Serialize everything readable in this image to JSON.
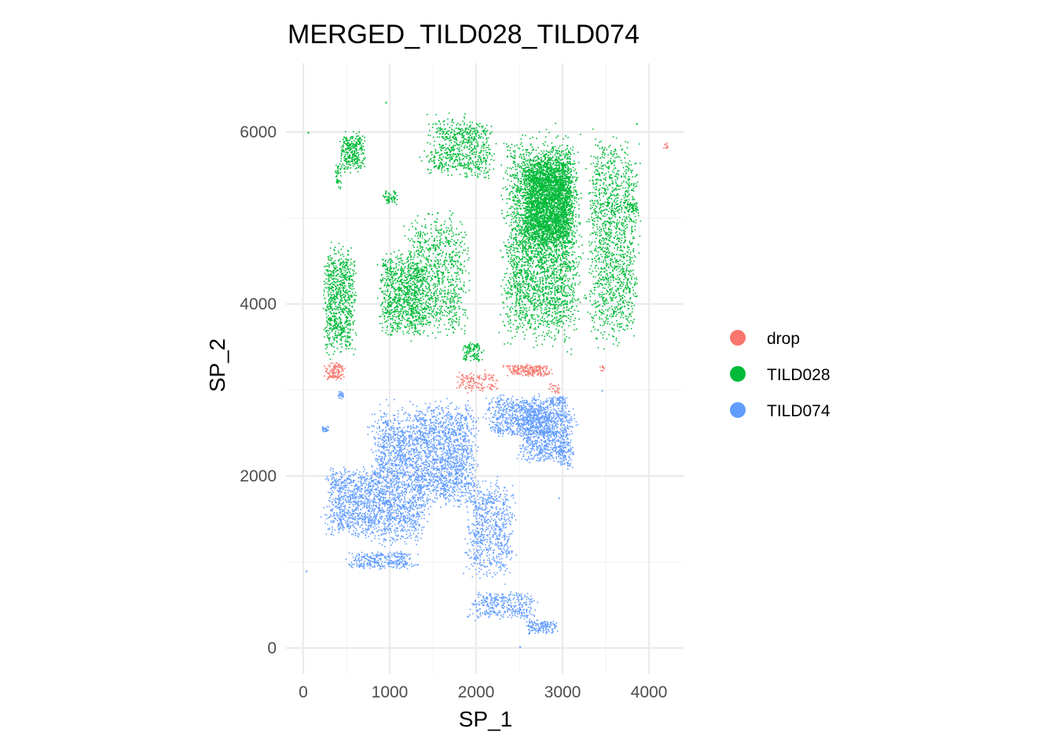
{
  "chart_data": {
    "type": "scatter",
    "title": "MERGED_TILD028_TILD074",
    "xlabel": "SP_1",
    "ylabel": "SP_2",
    "xlim": [
      -200,
      4400
    ],
    "ylim": [
      -300,
      6800
    ],
    "x_ticks": [
      0,
      1000,
      2000,
      3000,
      4000
    ],
    "y_ticks": [
      0,
      2000,
      4000,
      6000
    ],
    "grid": true,
    "legend_position": "right",
    "series": [
      {
        "name": "drop",
        "color": "#F8766D",
        "regions": [
          {
            "x": [
              200,
              500
            ],
            "y": [
              3100,
              3350
            ],
            "n": 120
          },
          {
            "x": [
              1700,
              2300
            ],
            "y": [
              2950,
              3250
            ],
            "n": 140
          },
          {
            "x": [
              2250,
              2950
            ],
            "y": [
              3150,
              3320
            ],
            "n": 220
          },
          {
            "x": [
              2800,
              3000
            ],
            "y": [
              2950,
              3100
            ],
            "n": 25
          },
          {
            "x": [
              3400,
              3500
            ],
            "y": [
              3200,
              3300
            ],
            "n": 10
          },
          {
            "x": [
              4150,
              4230
            ],
            "y": [
              5800,
              5900
            ],
            "n": 10
          }
        ],
        "points": [
          {
            "x": 4200,
            "y": 5850
          }
        ]
      },
      {
        "name": "TILD028",
        "color": "#00BA38",
        "regions": [
          {
            "x": [
              380,
              750
            ],
            "y": [
              5500,
              6050
            ],
            "n": 300
          },
          {
            "x": [
              350,
              450
            ],
            "y": [
              5300,
              5700
            ],
            "n": 40
          },
          {
            "x": [
              180,
              650
            ],
            "y": [
              3300,
              4800
            ],
            "n": 800
          },
          {
            "x": [
              800,
              1500
            ],
            "y": [
              3500,
              4700
            ],
            "n": 900
          },
          {
            "x": [
              1100,
              2000
            ],
            "y": [
              3500,
              5200
            ],
            "n": 900
          },
          {
            "x": [
              1300,
              2300
            ],
            "y": [
              5400,
              6250
            ],
            "n": 700
          },
          {
            "x": [
              2200,
              3300
            ],
            "y": [
              3300,
              6200
            ],
            "n": 3200
          },
          {
            "x": [
              2450,
              3200
            ],
            "y": [
              4500,
              5900
            ],
            "n": 2600
          },
          {
            "x": [
              3200,
              3950
            ],
            "y": [
              3300,
              6200
            ],
            "n": 1400
          },
          {
            "x": [
              900,
              1100
            ],
            "y": [
              5150,
              5350
            ],
            "n": 60
          },
          {
            "x": [
              1800,
              2100
            ],
            "y": [
              3300,
              3600
            ],
            "n": 120
          },
          {
            "x": [
              3700,
              3900
            ],
            "y": [
              5050,
              5200
            ],
            "n": 50
          }
        ],
        "points": [
          {
            "x": 950,
            "y": 6350
          },
          {
            "x": 50,
            "y": 6000
          },
          {
            "x": 3850,
            "y": 6100
          }
        ]
      },
      {
        "name": "TILD074",
        "color": "#619CFF",
        "regions": [
          {
            "x": [
              150,
              1000
            ],
            "y": [
              1200,
              2200
            ],
            "n": 900
          },
          {
            "x": [
              700,
              1500
            ],
            "y": [
              1000,
              3000
            ],
            "n": 1600
          },
          {
            "x": [
              1200,
              2100
            ],
            "y": [
              1500,
              3000
            ],
            "n": 1400
          },
          {
            "x": [
              1800,
              2500
            ],
            "y": [
              700,
              2100
            ],
            "n": 700
          },
          {
            "x": [
              2400,
              3200
            ],
            "y": [
              2100,
              2900
            ],
            "n": 900
          },
          {
            "x": [
              2000,
              3000
            ],
            "y": [
              2400,
              3000
            ],
            "n": 700
          },
          {
            "x": [
              400,
              1400
            ],
            "y": [
              900,
              1150
            ],
            "n": 300
          },
          {
            "x": [
              1800,
              2800
            ],
            "y": [
              300,
              700
            ],
            "n": 350
          },
          {
            "x": [
              2500,
              3000
            ],
            "y": [
              150,
              350
            ],
            "n": 150
          },
          {
            "x": [
              200,
              300
            ],
            "y": [
              2500,
              2600
            ],
            "n": 30
          },
          {
            "x": [
              380,
              480
            ],
            "y": [
              2900,
              3000
            ],
            "n": 25
          },
          {
            "x": [
              2800,
              3100
            ],
            "y": [
              2800,
              2950
            ],
            "n": 80
          },
          {
            "x": [
              2900,
              3150
            ],
            "y": [
              2050,
              2400
            ],
            "n": 60
          }
        ],
        "points": [
          {
            "x": 30,
            "y": 900
          },
          {
            "x": 2500,
            "y": 20
          },
          {
            "x": 2950,
            "y": 1750
          },
          {
            "x": 3450,
            "y": 3000
          }
        ]
      }
    ]
  }
}
